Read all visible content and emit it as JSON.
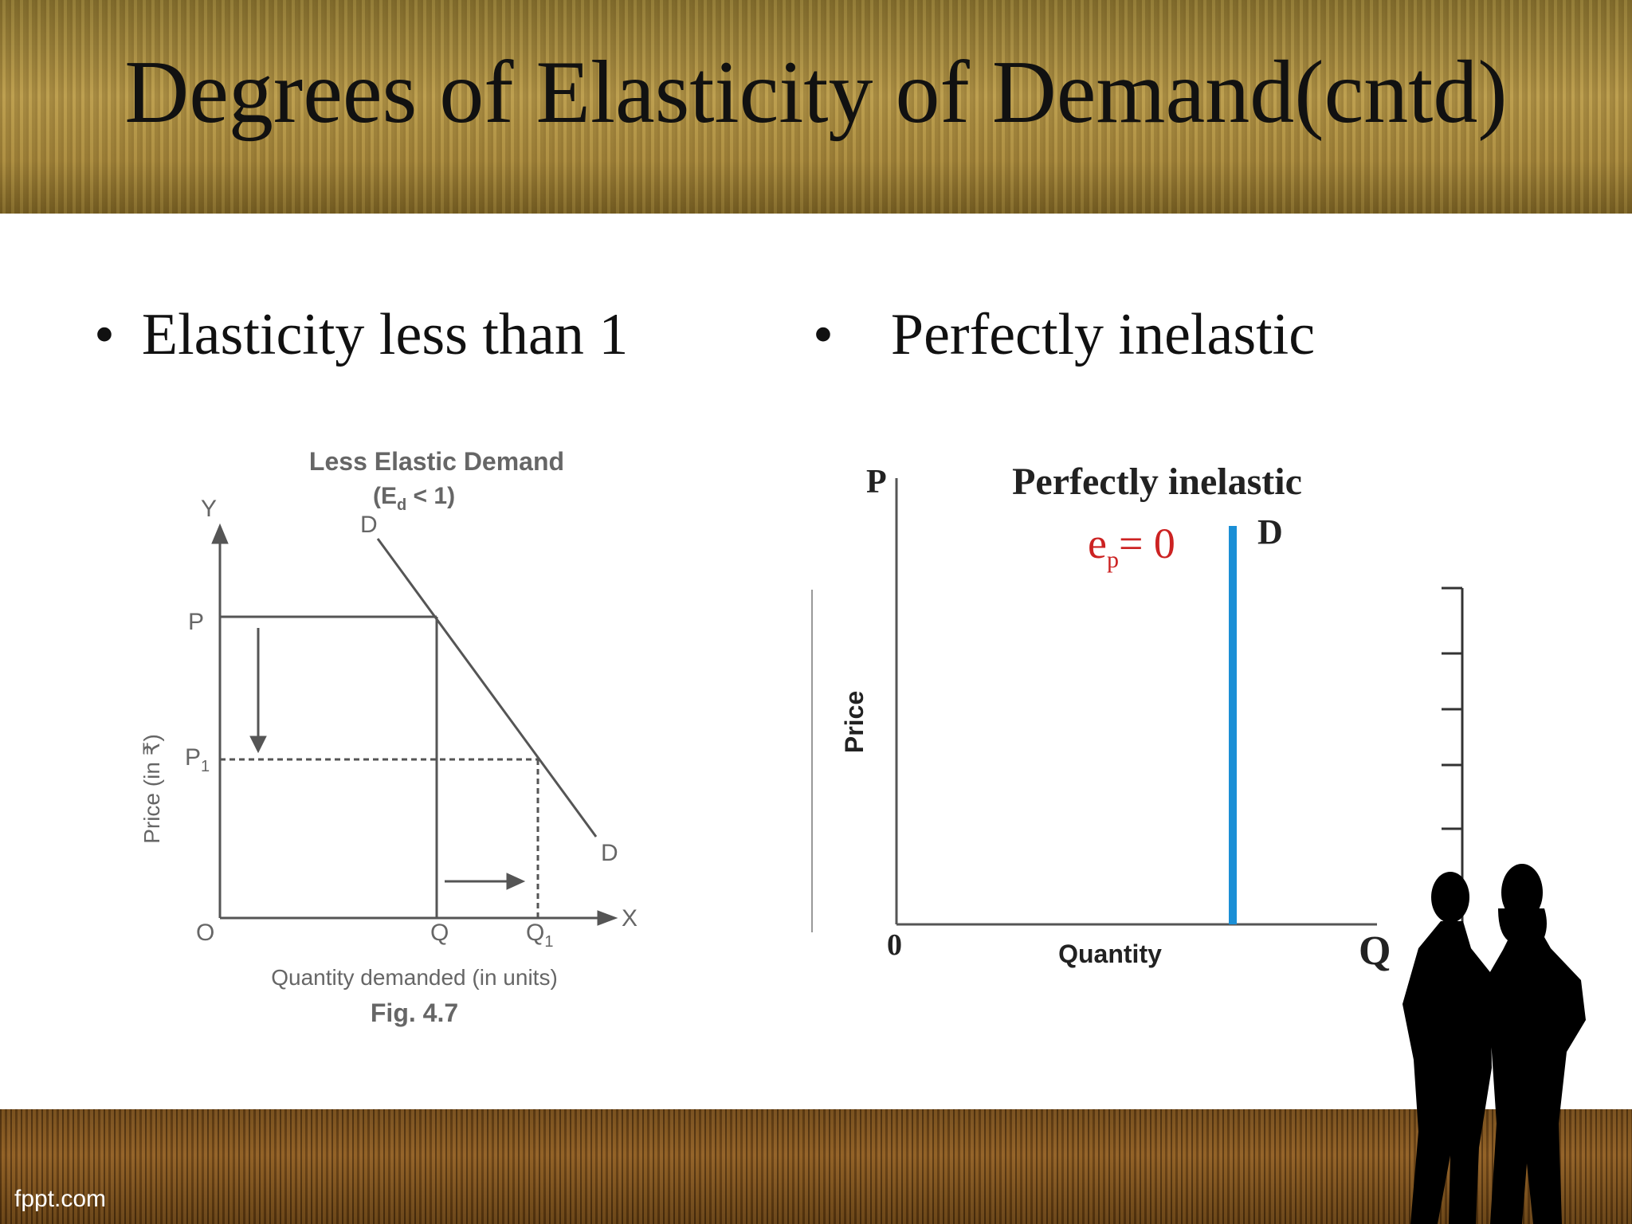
{
  "slide": {
    "title": "Degrees of Elasticity of Demand(cntd)",
    "footer_brand": "fppt.com"
  },
  "bullets": [
    {
      "symbol": "•",
      "text": "Elasticity less than 1"
    },
    {
      "symbol": "•",
      "text": "Perfectly inelastic"
    }
  ],
  "left_figure": {
    "title_line1": "Less Elastic Demand",
    "title_line2_main": "(E",
    "title_line2_sub": "d",
    "title_line2_rest": " < 1)",
    "y_axis_letter": "Y",
    "x_axis_letter": "X",
    "origin": "O",
    "price_label": "Price (in ₹)",
    "quantity_label": "Quantity demanded (in units)",
    "fig_caption": "Fig. 4.7",
    "curve_label_top": "D",
    "curve_label_bottom": "D",
    "p_label": "P",
    "p1_main": "P",
    "p1_sub": "1",
    "q_label": "Q",
    "q1_main": "Q",
    "q1_sub": "1"
  },
  "right_figure": {
    "title": "Perfectly inelastic",
    "y_axis_letter": "P",
    "x_axis_letter": "Q",
    "origin": "0",
    "y_label": "Price",
    "x_label": "Quantity",
    "curve_label": "D",
    "elasticity_main": "e",
    "elasticity_sub": "p",
    "elasticity_rest": "= 0"
  },
  "colors": {
    "demand_line": "#1a8fd6",
    "elasticity_text": "#cc2222",
    "left_figure_ink": "#666666"
  }
}
